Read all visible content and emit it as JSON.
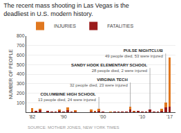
{
  "chart_data": {
    "type": "bar",
    "stacked": true,
    "title": "The recent mass shooting in Las Vegas is the deadliest in U.S. modern history.",
    "ylabel": "NUMBER OF PEOPLE",
    "source": "SOURCE: MOTHER JONES, NEW YORK TIMES",
    "x": [
      1982,
      1983,
      1984,
      1985,
      1986,
      1987,
      1988,
      1989,
      1990,
      1991,
      1992,
      1993,
      1994,
      1995,
      1996,
      1997,
      1998,
      1999,
      2000,
      2001,
      2002,
      2003,
      2004,
      2005,
      2006,
      2007,
      2008,
      2009,
      2010,
      2011,
      2012,
      2013,
      2014,
      2015,
      2016,
      2017
    ],
    "series": [
      {
        "name": "FATALITIES",
        "color": "#9B1C1C",
        "values": [
          8,
          13,
          21,
          0,
          15,
          7,
          10,
          14,
          10,
          23,
          4,
          9,
          0,
          0,
          1,
          6,
          5,
          13,
          7,
          0,
          3,
          7,
          7,
          9,
          6,
          32,
          6,
          13,
          8,
          6,
          28,
          5,
          5,
          14,
          49,
          58
        ]
      },
      {
        "name": "INJURIES",
        "color": "#E07820",
        "values": [
          35,
          3,
          19,
          0,
          0,
          1,
          0,
          18,
          0,
          30,
          1,
          11,
          0,
          0,
          0,
          20,
          7,
          24,
          0,
          0,
          1,
          0,
          0,
          0,
          2,
          23,
          7,
          4,
          2,
          0,
          2,
          2,
          0,
          21,
          53,
          515
        ]
      }
    ],
    "xlim": [
      1980.5,
      2018.5
    ],
    "xticks": [
      {
        "value": 1982,
        "label": "'82"
      },
      {
        "value": 1990,
        "label": "'90"
      },
      {
        "value": 2000,
        "label": "'00"
      },
      {
        "value": 2010,
        "label": "'10"
      },
      {
        "value": 2017,
        "label": "'17"
      }
    ],
    "ylim": [
      0,
      800
    ],
    "yticks": [
      100,
      200,
      300,
      400,
      500,
      600,
      700,
      800
    ],
    "grid": true,
    "legend": "top left",
    "annotations": [
      {
        "text": "COLUMBINE HIGH SCHOOL",
        "subtext": "13 people died, 24 were injured",
        "x": 1999,
        "y": 37
      },
      {
        "text": "VIRGINIA TECH",
        "subtext": "32 people died, 23 were injured",
        "x": 2007,
        "y": 55
      },
      {
        "text": "SANDY HOOK ELEMENTARY SCHOOL",
        "subtext": "28 people died, 2 were injured",
        "x": 2012,
        "y": 30
      },
      {
        "text": "PULSE NIGHTCLUB",
        "subtext": "49 people died, 53 were injured",
        "x": 2016,
        "y": 102
      }
    ]
  }
}
